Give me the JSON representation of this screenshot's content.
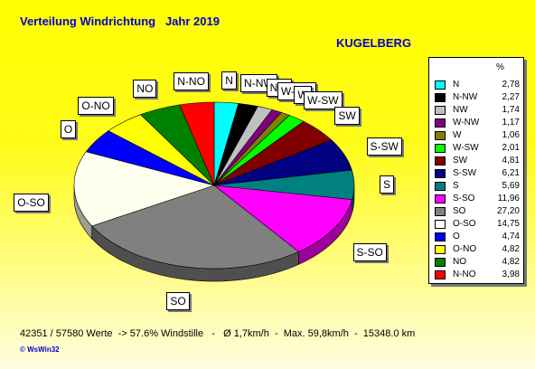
{
  "header": {
    "title": "Verteilung Windrichtung   Jahr 2019",
    "station": "KUGELBERG"
  },
  "legend": {
    "pct_header": "%"
  },
  "footer": {
    "text": "42351 / 57580 Werte  -> 57.6% Windstille   -   Ø 1,7km/h  -  Max. 59,8km/h  -  15348.0 km"
  },
  "copyright": "© WsWin32",
  "chart_data": {
    "type": "pie",
    "title": "Verteilung Windrichtung   Jahr 2019",
    "slices": [
      {
        "name": "N",
        "value": 2.78,
        "value_label": "2,78",
        "color": "#00ffff"
      },
      {
        "name": "N-NW",
        "value": 2.27,
        "value_label": "2,27",
        "color": "#000000"
      },
      {
        "name": "NW",
        "value": 1.74,
        "value_label": "1,74",
        "color": "#c0c0c0"
      },
      {
        "name": "W-NW",
        "value": 1.17,
        "value_label": "1,17",
        "color": "#800080"
      },
      {
        "name": "W",
        "value": 1.06,
        "value_label": "1,06",
        "color": "#808000"
      },
      {
        "name": "W-SW",
        "value": 2.01,
        "value_label": "2,01",
        "color": "#00ff00"
      },
      {
        "name": "SW",
        "value": 4.81,
        "value_label": "4,81",
        "color": "#800000"
      },
      {
        "name": "S-SW",
        "value": 6.21,
        "value_label": "6,21",
        "color": "#000080"
      },
      {
        "name": "S",
        "value": 5.69,
        "value_label": "5,69",
        "color": "#008080"
      },
      {
        "name": "S-SO",
        "value": 11.96,
        "value_label": "11,96",
        "color": "#ff00ff"
      },
      {
        "name": "SO",
        "value": 27.2,
        "value_label": "27,20",
        "color": "#808080"
      },
      {
        "name": "O-SO",
        "value": 14.75,
        "value_label": "14,75",
        "color": "#fffff0"
      },
      {
        "name": "O",
        "value": 4.74,
        "value_label": "4,74",
        "color": "#0000ff"
      },
      {
        "name": "O-NO",
        "value": 4.82,
        "value_label": "4,82",
        "color": "#ffff00"
      },
      {
        "name": "NO",
        "value": 4.82,
        "value_label": "4,82",
        "color": "#008000"
      },
      {
        "name": "N-NO",
        "value": 3.98,
        "value_label": "3,98",
        "color": "#ff0000"
      }
    ]
  }
}
